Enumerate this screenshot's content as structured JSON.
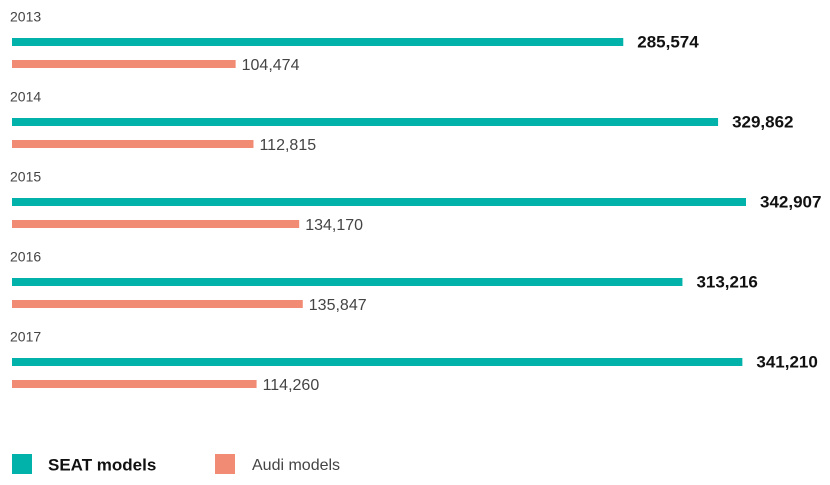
{
  "chart_data": {
    "type": "bar",
    "orientation": "horizontal",
    "categories": [
      "2013",
      "2014",
      "2015",
      "2016",
      "2017"
    ],
    "series": [
      {
        "name": "SEAT models",
        "color": "#00b2a9",
        "values": [
          285574,
          329862,
          342907,
          313216,
          341210
        ],
        "value_labels": [
          "285,574",
          "329,862",
          "342,907",
          "313,216",
          "341,210"
        ]
      },
      {
        "name": "Audi models",
        "color": "#f28b74",
        "values": [
          104474,
          112815,
          134170,
          135847,
          114260
        ],
        "value_labels": [
          "104,474",
          "112,815",
          "134,170",
          "135,847",
          "114,260"
        ]
      }
    ],
    "legend": "bottom-left"
  }
}
